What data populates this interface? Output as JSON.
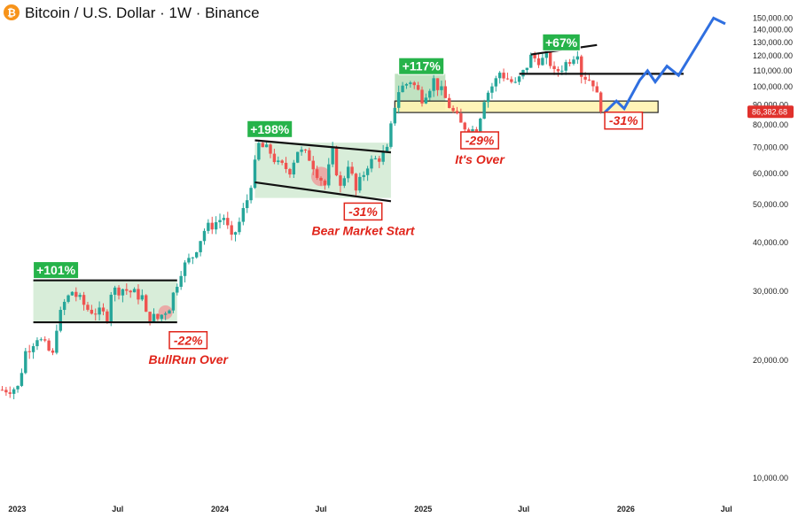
{
  "header": {
    "title": "Bitcoin / U.S. Dollar · 1W · Binance",
    "logo_icon": "bitcoin-logo-icon",
    "logo_color": "#f7931a"
  },
  "current_price": {
    "label": "86,382.68",
    "value": 86382.68,
    "color": "#e0312c"
  },
  "chart_data": {
    "type": "line",
    "title": "Bitcoin / U.S. Dollar · 1W · Binance",
    "xlabel": "",
    "ylabel": "",
    "y_scale": "log",
    "ylim": [
      9000,
      160000
    ],
    "xlim": [
      "2022-12-01",
      "2026-07-31"
    ],
    "grid": false,
    "y_ticks": [
      {
        "value": 10000,
        "label": "10,000.00"
      },
      {
        "value": 20000,
        "label": "20,000.00"
      },
      {
        "value": 30000,
        "label": "30,000.00"
      },
      {
        "value": 40000,
        "label": "40,000.00"
      },
      {
        "value": 50000,
        "label": "50,000.00"
      },
      {
        "value": 60000,
        "label": "60,000.00"
      },
      {
        "value": 70000,
        "label": "70,000.00"
      },
      {
        "value": 80000,
        "label": "80,000.00"
      },
      {
        "value": 90000,
        "label": "90,000.00"
      },
      {
        "value": 100000,
        "label": "100,000.00"
      },
      {
        "value": 110000,
        "label": "110,000.00"
      },
      {
        "value": 120000,
        "label": "120,000.00"
      },
      {
        "value": 130000,
        "label": "130,000.00"
      },
      {
        "value": 140000,
        "label": "140,000.00"
      },
      {
        "value": 150000,
        "label": "150,000.00"
      }
    ],
    "x_ticks": [
      {
        "date": "2023-01-01",
        "label": "2023"
      },
      {
        "date": "2023-07-01",
        "label": "Jul"
      },
      {
        "date": "2024-01-01",
        "label": "2024"
      },
      {
        "date": "2024-07-01",
        "label": "Jul"
      },
      {
        "date": "2025-01-01",
        "label": "2025"
      },
      {
        "date": "2025-07-01",
        "label": "Jul"
      },
      {
        "date": "2026-01-01",
        "label": "2026"
      },
      {
        "date": "2026-07-01",
        "label": "Jul"
      }
    ],
    "candles": {
      "colors": {
        "up": "#26a69a",
        "down": "#ef5350"
      },
      "close_points": [
        [
          "2022-12-05",
          16800
        ],
        [
          "2023-01-02",
          17000
        ],
        [
          "2023-01-16",
          21000
        ],
        [
          "2023-02-06",
          23000
        ],
        [
          "2023-03-06",
          20500
        ],
        [
          "2023-03-13",
          24500
        ],
        [
          "2023-03-27",
          28000
        ],
        [
          "2023-04-10",
          30000
        ],
        [
          "2023-05-08",
          27000
        ],
        [
          "2023-06-12",
          26000
        ],
        [
          "2023-06-19",
          30000
        ],
        [
          "2023-07-10",
          30500
        ],
        [
          "2023-08-14",
          29000
        ],
        [
          "2023-08-21",
          26000
        ],
        [
          "2023-09-11",
          25500
        ],
        [
          "2023-10-02",
          27500
        ],
        [
          "2023-10-23",
          34000
        ],
        [
          "2023-11-13",
          37000
        ],
        [
          "2023-12-04",
          43000
        ],
        [
          "2024-01-08",
          46500
        ],
        [
          "2024-01-22",
          40500
        ],
        [
          "2024-02-05",
          45000
        ],
        [
          "2024-02-19",
          51500
        ],
        [
          "2024-03-04",
          63000
        ],
        [
          "2024-03-11",
          71000
        ],
        [
          "2024-04-01",
          68000
        ],
        [
          "2024-04-15",
          63000
        ],
        [
          "2024-05-06",
          61500
        ],
        [
          "2024-05-20",
          69000
        ],
        [
          "2024-06-10",
          66000
        ],
        [
          "2024-06-24",
          60500
        ],
        [
          "2024-07-08",
          56000
        ],
        [
          "2024-07-22",
          68000
        ],
        [
          "2024-08-05",
          55000
        ],
        [
          "2024-08-19",
          64000
        ],
        [
          "2024-09-02",
          54000
        ],
        [
          "2024-09-23",
          63500
        ],
        [
          "2024-10-14",
          66000
        ],
        [
          "2024-10-28",
          68500
        ],
        [
          "2024-11-11",
          90000
        ],
        [
          "2024-11-18",
          98000
        ],
        [
          "2024-12-09",
          104000
        ],
        [
          "2024-12-30",
          94000
        ],
        [
          "2025-01-20",
          104000
        ],
        [
          "2025-02-03",
          97000
        ],
        [
          "2025-02-24",
          86000
        ],
        [
          "2025-03-10",
          80000
        ],
        [
          "2025-04-07",
          77000
        ],
        [
          "2025-04-21",
          94000
        ],
        [
          "2025-05-12",
          104000
        ],
        [
          "2025-05-19",
          109000
        ],
        [
          "2025-06-16",
          101000
        ],
        [
          "2025-06-30",
          108500
        ],
        [
          "2025-07-14",
          119000
        ],
        [
          "2025-08-04",
          117000
        ],
        [
          "2025-08-11",
          123000
        ],
        [
          "2025-08-25",
          108000
        ],
        [
          "2025-09-15",
          115000
        ],
        [
          "2025-10-06",
          124000
        ],
        [
          "2025-10-13",
          108000
        ],
        [
          "2025-11-03",
          103000
        ],
        [
          "2025-11-17",
          86382.68
        ]
      ]
    },
    "annotations": [
      {
        "label": "+101%",
        "kind": "gain",
        "date": "2023-01-30",
        "price": 34000
      },
      {
        "label": "-22%",
        "kind": "loss",
        "date": "2023-10-02",
        "price": 22500,
        "caption": "BullRun Over"
      },
      {
        "label": "+198%",
        "kind": "gain",
        "date": "2024-02-19",
        "price": 78000
      },
      {
        "label": "-31%",
        "kind": "loss",
        "date": "2024-08-12",
        "price": 48000,
        "caption": "Bear Market Start"
      },
      {
        "label": "+117%",
        "kind": "gain",
        "date": "2024-11-18",
        "price": 113000
      },
      {
        "label": "-29%",
        "kind": "loss",
        "date": "2025-03-10",
        "price": 73000,
        "caption": "It's Over"
      },
      {
        "label": "+67%",
        "kind": "gain",
        "date": "2025-08-04",
        "price": 130000
      },
      {
        "label": "-31%",
        "kind": "loss",
        "date": "2025-11-24",
        "price": 82000
      }
    ],
    "zones": [
      {
        "name": "range-2023",
        "from": "2023-01-30",
        "to": "2023-10-16",
        "low": 25000,
        "high": 32000,
        "color": "#c8e6c9"
      },
      {
        "name": "range-2024",
        "from": "2024-03-04",
        "to": "2024-11-04",
        "low": 52000,
        "high": 72000,
        "color": "#c8e6c9"
      },
      {
        "name": "range-2025",
        "from": "2024-11-11",
        "to": "2025-02-10",
        "low": 87000,
        "high": 108000,
        "color": "#a5d6a7"
      },
      {
        "name": "support-2025",
        "from": "2024-11-11",
        "to": "2026-02-28",
        "low": 86000,
        "high": 92000,
        "color": "#fff3b0"
      }
    ],
    "trend_lines": [
      {
        "name": "top-2023",
        "from": [
          "2023-01-30",
          32000
        ],
        "to": [
          "2023-10-16",
          32000
        ]
      },
      {
        "name": "bottom-2023",
        "from": [
          "2023-01-30",
          25000
        ],
        "to": [
          "2023-10-16",
          25000
        ]
      },
      {
        "name": "top-2024",
        "from": [
          "2024-03-04",
          73000
        ],
        "to": [
          "2024-11-04",
          68000
        ]
      },
      {
        "name": "bottom-2024",
        "from": [
          "2024-03-04",
          57000
        ],
        "to": [
          "2024-11-04",
          51000
        ]
      },
      {
        "name": "top-2025",
        "from": [
          "2025-07-14",
          121000
        ],
        "to": [
          "2025-11-10",
          128000
        ]
      },
      {
        "name": "resistance-2025",
        "from": [
          "2025-06-23",
          108000
        ],
        "to": [
          "2026-04-15",
          108000
        ]
      }
    ],
    "projection": {
      "color": "#2f6fe0",
      "points": [
        [
          "2025-11-24",
          86000
        ],
        [
          "2025-12-15",
          92000
        ],
        [
          "2025-12-29",
          88000
        ],
        [
          "2026-01-26",
          104000
        ],
        [
          "2026-02-09",
          110000
        ],
        [
          "2026-02-23",
          103000
        ],
        [
          "2026-03-16",
          113000
        ],
        [
          "2026-04-06",
          107000
        ],
        [
          "2026-06-08",
          150000
        ],
        [
          "2026-06-29",
          145000
        ]
      ]
    }
  }
}
